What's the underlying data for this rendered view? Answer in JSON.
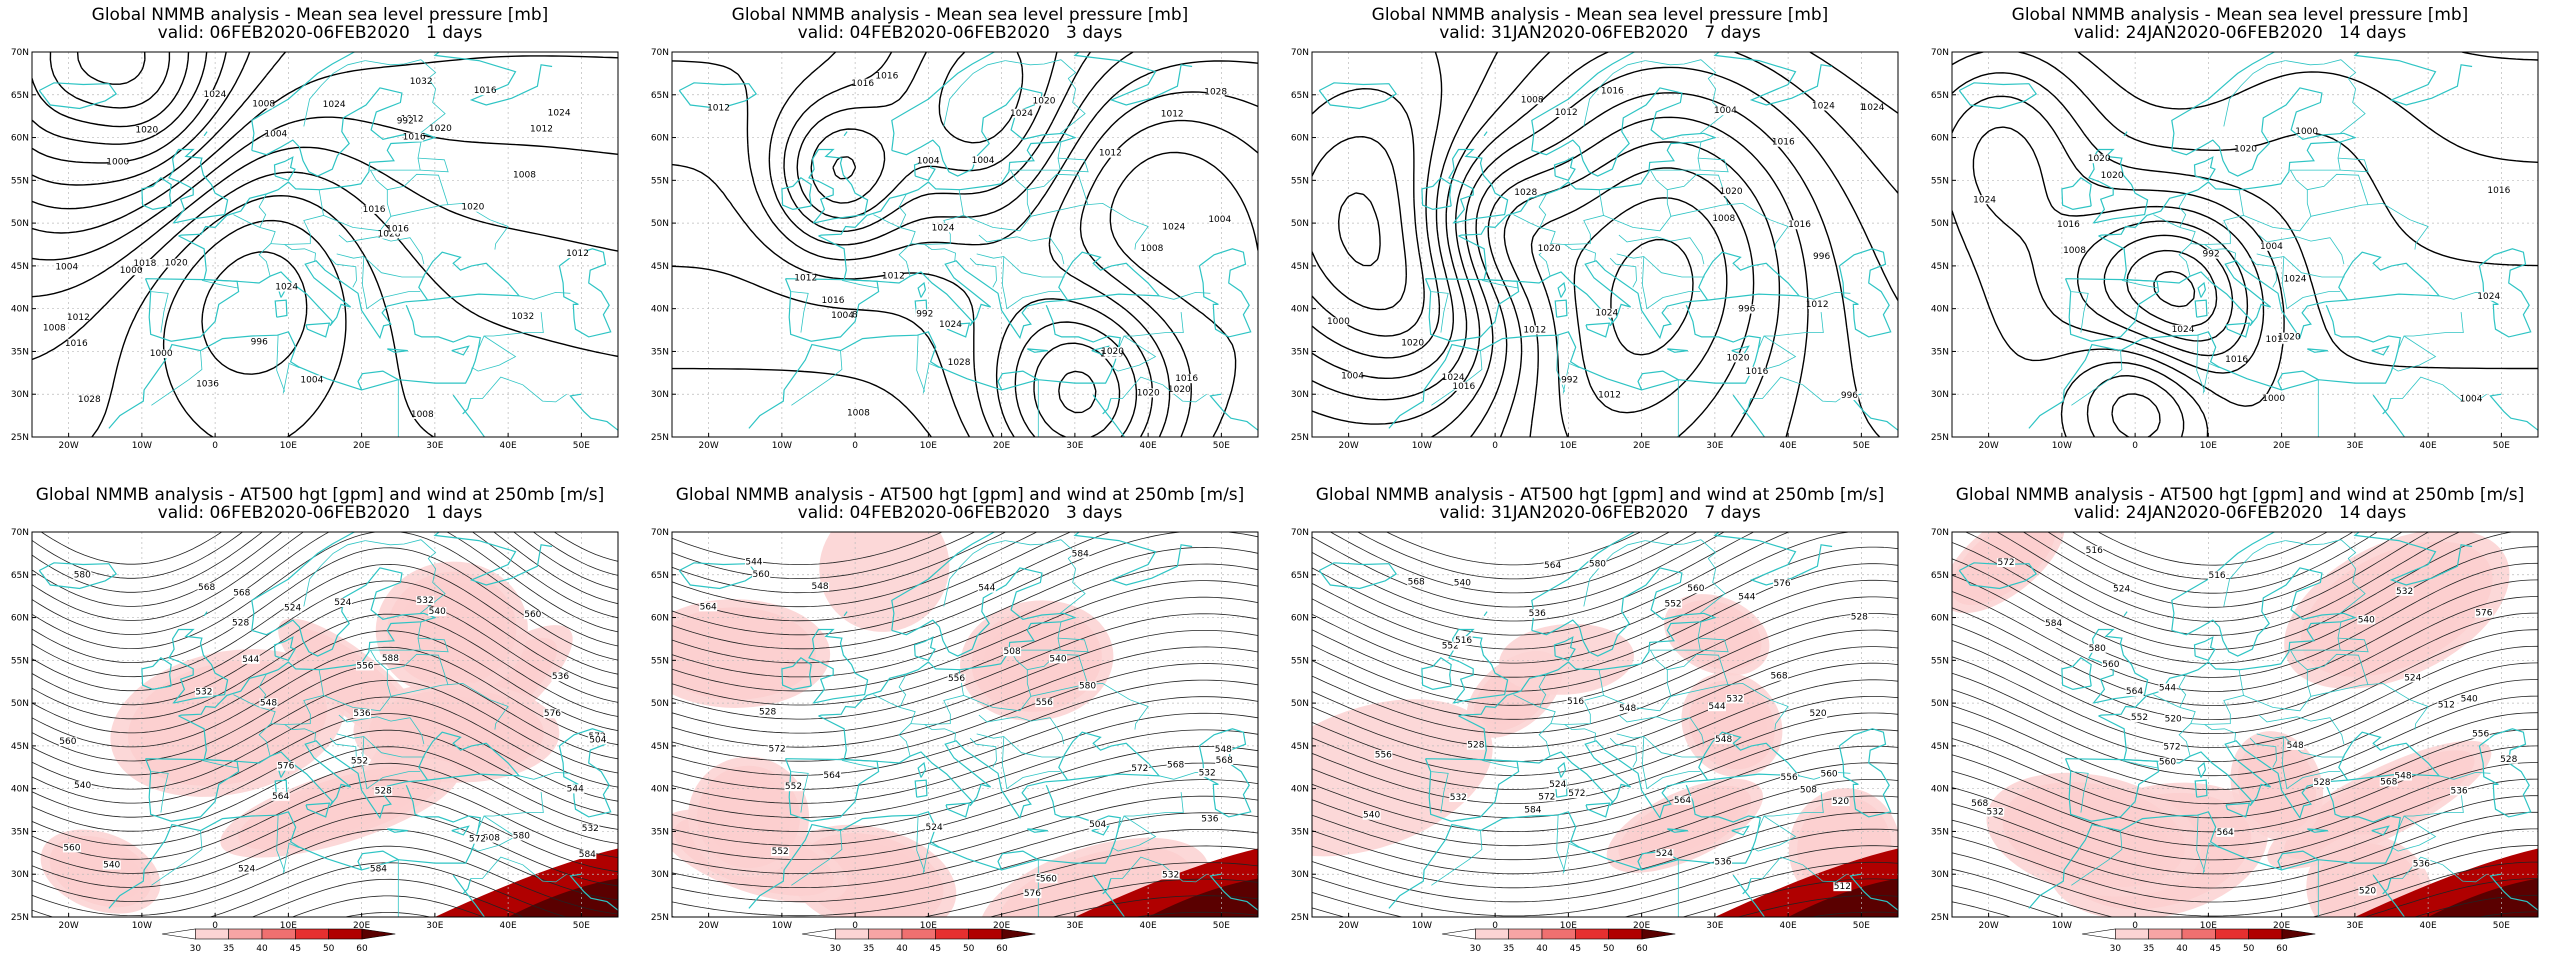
{
  "panels": [
    {
      "id": "mslp-1d",
      "row": 0,
      "col": 0,
      "line1": "Global NMMB analysis - Mean sea level pressure [mb]",
      "line2": "valid: 06FEB2020-06FEB2020   1 days",
      "kind": "mslp",
      "contour_labels": [
        "1024",
        "1020",
        "1028",
        "1032",
        "1008",
        "1012",
        "1016",
        "1018",
        "1036",
        "1032",
        "1028",
        "1024",
        "1020",
        "992",
        "996",
        "1000",
        "1004",
        "1008",
        "1012",
        "1000",
        "1004",
        "1008",
        "1012",
        "1016",
        "1020",
        "1024",
        "1000",
        "1004",
        "1008",
        "1016",
        "1016",
        "1024",
        "1020",
        "1016",
        "1012"
      ]
    },
    {
      "id": "mslp-3d",
      "row": 0,
      "col": 1,
      "line1": "Global NMMB analysis - Mean sea level pressure [mb]",
      "line2": "valid: 04FEB2020-06FEB2020   3 days",
      "kind": "mslp",
      "contour_labels": [
        "1004",
        "1004",
        "1008",
        "1012",
        "992",
        "1020",
        "1024",
        "1028",
        "1016",
        "1012",
        "1016",
        "1012",
        "1004",
        "1008",
        "1012",
        "1016",
        "1020",
        "1024",
        "1020",
        "1028",
        "1024",
        "1008",
        "1004",
        "1012",
        "1016",
        "1020",
        "1024",
        "1028"
      ]
    },
    {
      "id": "mslp-7d",
      "row": 0,
      "col": 2,
      "line1": "Global NMMB analysis - Mean sea level pressure [mb]",
      "line2": "valid: 31JAN2020-06FEB2020   7 days",
      "kind": "mslp",
      "contour_labels": [
        "992",
        "996",
        "996",
        "996",
        "1000",
        "1000",
        "1004",
        "1008",
        "1012",
        "1016",
        "1020",
        "1024",
        "1028",
        "1004",
        "1008",
        "1012",
        "1016",
        "1016",
        "1012",
        "1016",
        "1020",
        "1024",
        "1024",
        "1020",
        "1020",
        "1024",
        "1016",
        "1012"
      ]
    },
    {
      "id": "mslp-14d",
      "row": 0,
      "col": 3,
      "line1": "Global NMMB analysis - Mean sea level pressure [mb]",
      "line2": "valid: 24JAN2020-06FEB2020   14 days",
      "kind": "mslp",
      "contour_labels": [
        "992",
        "1000",
        "1000",
        "1004",
        "1004",
        "1008",
        "1012",
        "1016",
        "1020",
        "1024",
        "1020",
        "1024",
        "1016",
        "1020",
        "1024",
        "1016",
        "1020",
        "1024"
      ]
    },
    {
      "id": "z500-1d",
      "row": 1,
      "col": 0,
      "line1": "Global NMMB analysis - AT500 hgt [gpm] and wind at 250mb [m/s]",
      "line2": "valid: 06FEB2020-06FEB2020   1 days",
      "kind": "z500",
      "contour_labels": [
        "524",
        "528",
        "532",
        "536",
        "540",
        "544",
        "548",
        "552",
        "556",
        "560",
        "564",
        "568",
        "572",
        "576",
        "580",
        "584",
        "504",
        "508",
        "560",
        "524",
        "532",
        "540",
        "544",
        "540",
        "536",
        "532",
        "524",
        "528",
        "560",
        "568",
        "572",
        "576",
        "580",
        "584",
        "588"
      ]
    },
    {
      "id": "z500-3d",
      "row": 1,
      "col": 1,
      "line1": "Global NMMB analysis - AT500 hgt [gpm] and wind at 250mb [m/s]",
      "line2": "valid: 04FEB2020-06FEB2020   3 days",
      "kind": "z500",
      "contour_labels": [
        "524",
        "528",
        "532",
        "536",
        "540",
        "544",
        "548",
        "552",
        "556",
        "560",
        "564",
        "568",
        "572",
        "576",
        "580",
        "584",
        "504",
        "508",
        "532",
        "540",
        "544",
        "548",
        "552",
        "556",
        "560",
        "564",
        "568",
        "572"
      ]
    },
    {
      "id": "z500-7d",
      "row": 1,
      "col": 2,
      "line1": "Global NMMB analysis - AT500 hgt [gpm] and wind at 250mb [m/s]",
      "line2": "valid: 31JAN2020-06FEB2020   7 days",
      "kind": "z500",
      "contour_labels": [
        "516",
        "520",
        "524",
        "528",
        "532",
        "536",
        "540",
        "544",
        "548",
        "552",
        "556",
        "560",
        "564",
        "568",
        "572",
        "576",
        "580",
        "584",
        "508",
        "512",
        "516",
        "520",
        "524",
        "528",
        "532",
        "536",
        "540",
        "544",
        "548",
        "552",
        "556",
        "560",
        "564",
        "568",
        "572"
      ]
    },
    {
      "id": "z500-14d",
      "row": 1,
      "col": 3,
      "line1": "Global NMMB analysis - AT500 hgt [gpm] and wind at 250mb [m/s]",
      "line2": "valid: 24JAN2020-06FEB2020   14 days",
      "kind": "z500",
      "contour_labels": [
        "516",
        "520",
        "524",
        "528",
        "532",
        "536",
        "540",
        "544",
        "548",
        "552",
        "556",
        "560",
        "564",
        "568",
        "572",
        "576",
        "580",
        "584",
        "512",
        "516",
        "520",
        "524",
        "528",
        "532",
        "536",
        "540",
        "548",
        "560",
        "564",
        "568",
        "572"
      ]
    }
  ],
  "axes": {
    "lat_labels": [
      "70N",
      "65N",
      "60N",
      "55N",
      "50N",
      "45N",
      "40N",
      "35N",
      "30N",
      "25N"
    ],
    "lon_labels": [
      "20W",
      "10W",
      "0",
      "10E",
      "20E",
      "30E",
      "40E",
      "50E"
    ]
  },
  "colorbar": {
    "ticks": [
      "30",
      "35",
      "40",
      "45",
      "50",
      "60"
    ]
  },
  "colors": {
    "coast": "#2ec4c4",
    "contour_mslp": "#000000",
    "contour_z": "#222222",
    "grid": "#bbbbbb",
    "wind": [
      "#ffffff",
      "#fcd4d4",
      "#f7a5a5",
      "#f07070",
      "#e63030",
      "#b00000",
      "#5a0000"
    ]
  }
}
